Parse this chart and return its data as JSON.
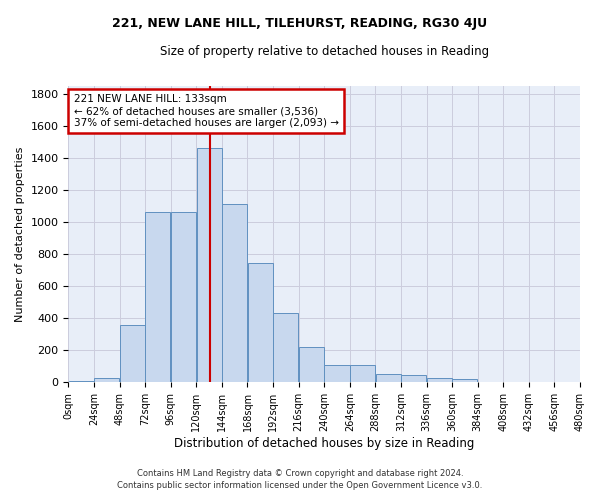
{
  "title": "221, NEW LANE HILL, TILEHURST, READING, RG30 4JU",
  "subtitle": "Size of property relative to detached houses in Reading",
  "xlabel": "Distribution of detached houses by size in Reading",
  "ylabel": "Number of detached properties",
  "footnote1": "Contains HM Land Registry data © Crown copyright and database right 2024.",
  "footnote2": "Contains public sector information licensed under the Open Government Licence v3.0.",
  "bar_color": "#c8d8ee",
  "bar_edge_color": "#6090c0",
  "background_color": "#e8eef8",
  "grid_color": "#ccccdd",
  "property_size": 133,
  "vline_color": "#cc0000",
  "annotation_text": "221 NEW LANE HILL: 133sqm\n← 62% of detached houses are smaller (3,536)\n37% of semi-detached houses are larger (2,093) →",
  "annotation_box_color": "#cc0000",
  "bin_edges": [
    0,
    24,
    48,
    72,
    96,
    120,
    144,
    168,
    192,
    216,
    240,
    264,
    288,
    312,
    336,
    360,
    384,
    408,
    432,
    456,
    480
  ],
  "bin_labels": [
    "0sqm",
    "24sqm",
    "48sqm",
    "72sqm",
    "96sqm",
    "120sqm",
    "144sqm",
    "168sqm",
    "192sqm",
    "216sqm",
    "240sqm",
    "264sqm",
    "288sqm",
    "312sqm",
    "336sqm",
    "360sqm",
    "384sqm",
    "408sqm",
    "432sqm",
    "456sqm",
    "480sqm"
  ],
  "bar_heights": [
    10,
    30,
    355,
    1060,
    1060,
    1460,
    1110,
    745,
    435,
    220,
    110,
    110,
    50,
    45,
    30,
    20,
    5,
    2,
    1,
    0
  ],
  "ylim": [
    0,
    1850
  ],
  "yticks": [
    0,
    200,
    400,
    600,
    800,
    1000,
    1200,
    1400,
    1600,
    1800
  ]
}
